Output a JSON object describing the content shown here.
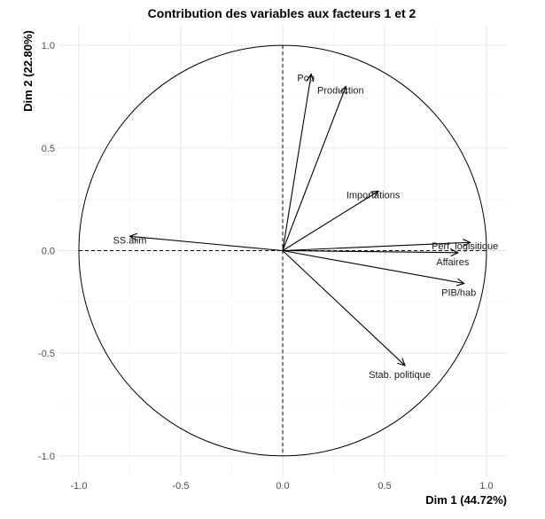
{
  "chart_data": {
    "type": "scatter",
    "subtype": "correlation-circle",
    "title": "Contribution des variables aux facteurs 1 et 2",
    "xlabel": "Dim 1 (44.72%)",
    "ylabel": "Dim 2 (22.80%)",
    "xlim": [
      -1.1,
      1.1
    ],
    "ylim": [
      -1.1,
      1.1
    ],
    "xticks": [
      "-1.0",
      "-0.5",
      "0.0",
      "0.5",
      "1.0"
    ],
    "yticks": [
      "-1.0",
      "-0.5",
      "0.0",
      "0.5",
      "1.0"
    ],
    "grid": true,
    "variables": [
      {
        "name": "Pop",
        "x": 0.14,
        "y": 0.86
      },
      {
        "name": "Production",
        "x": 0.31,
        "y": 0.8
      },
      {
        "name": "Importations",
        "x": 0.47,
        "y": 0.29
      },
      {
        "name": "Perf. logisitique",
        "x": 0.92,
        "y": 0.04
      },
      {
        "name": "Affaires",
        "x": 0.86,
        "y": -0.01
      },
      {
        "name": "PIB/hab",
        "x": 0.89,
        "y": -0.16
      },
      {
        "name": "SS.alim",
        "x": -0.75,
        "y": 0.07
      },
      {
        "name": "Stab. politique",
        "x": 0.6,
        "y": -0.56
      }
    ]
  }
}
